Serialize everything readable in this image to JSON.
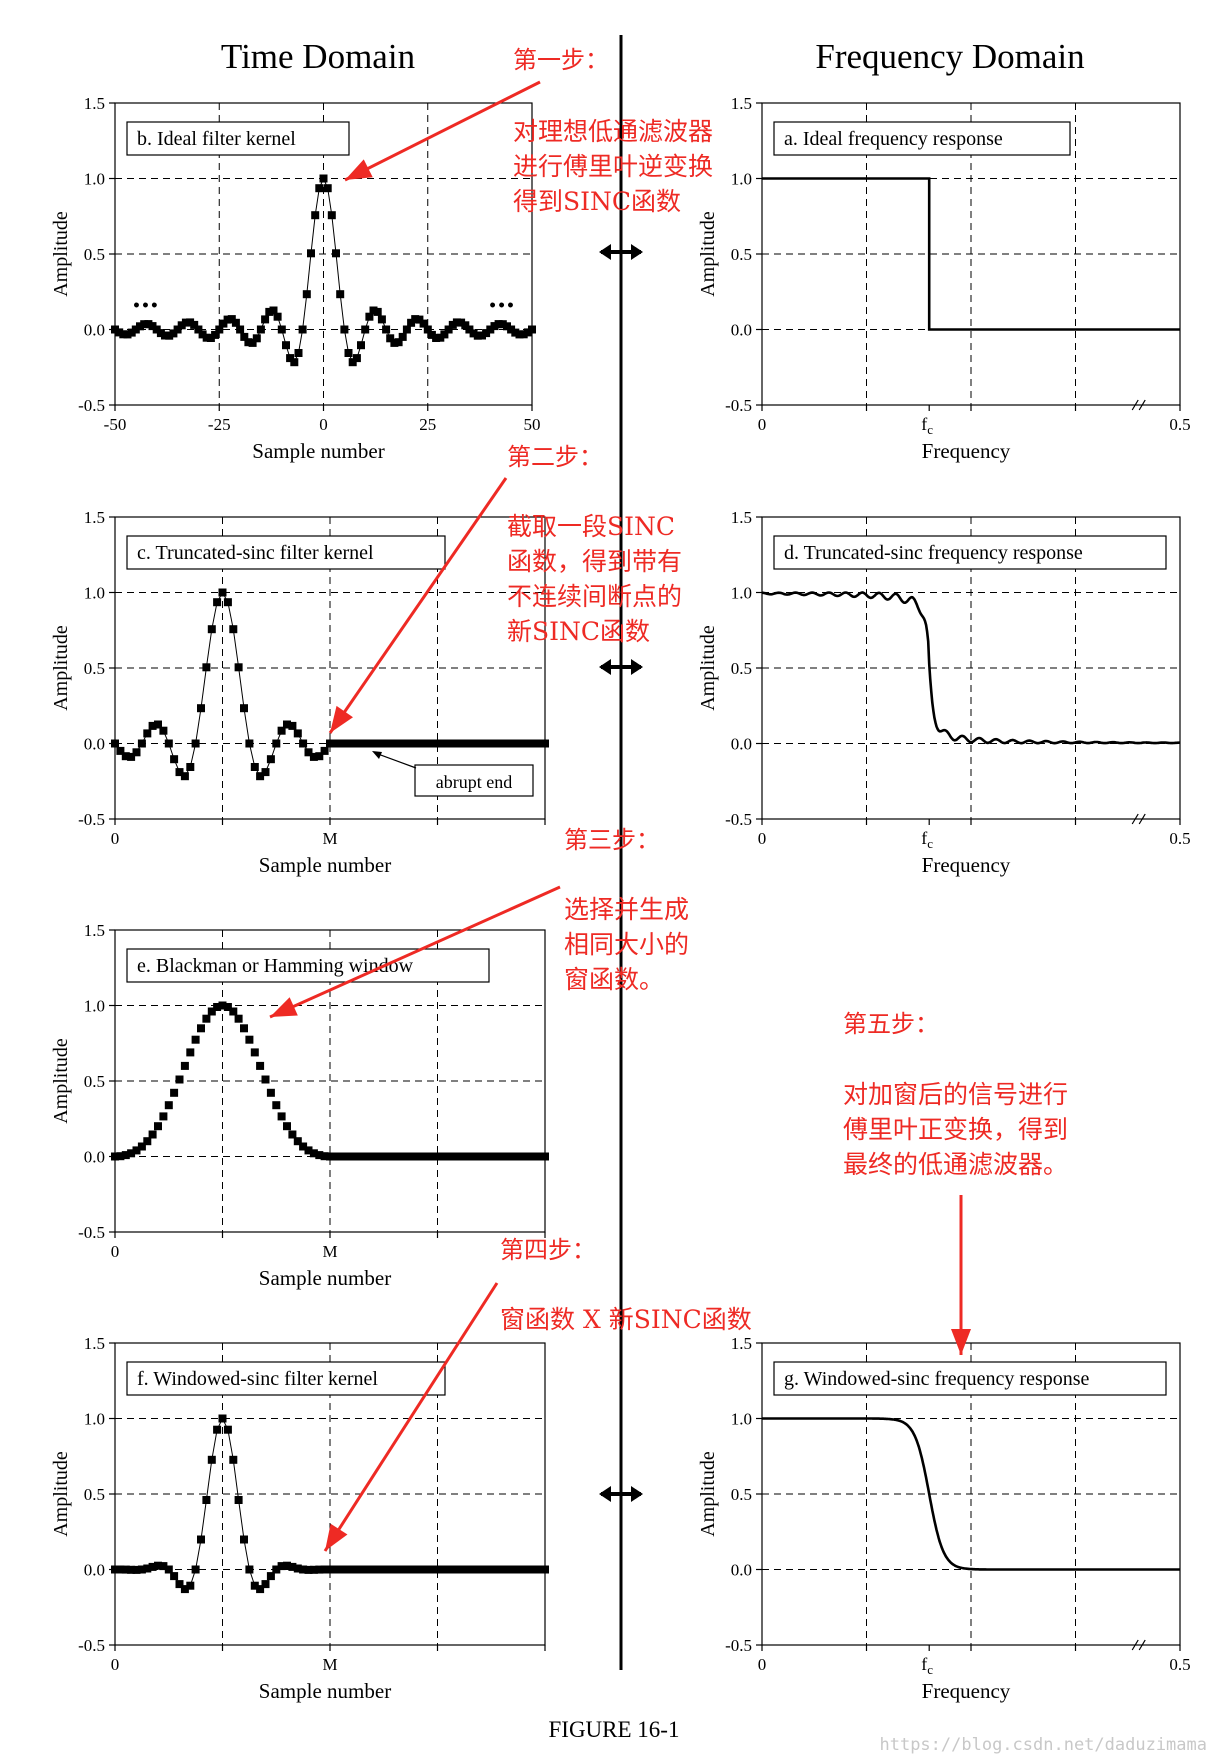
{
  "headers": {
    "time_domain": "Time Domain",
    "frequency_domain": "Frequency Domain"
  },
  "figure_caption": "FIGURE 16-1",
  "watermark": "https://blog.csdn.net/daduzimama",
  "colors": {
    "annotation": "#ee2a24",
    "ink": "#000000",
    "grid": "#000000"
  },
  "icons": {
    "transform_arrow": "double-headed-arrow-icon"
  },
  "chart_data": [
    {
      "id": "b",
      "type": "scatter",
      "domain": "time",
      "title": "b. Ideal filter kernel",
      "xlabel": "Sample number",
      "ylabel": "Amplitude",
      "xlim": [
        -50,
        50
      ],
      "ylim": [
        -0.5,
        1.5
      ],
      "xticks": [
        -50,
        -25,
        0,
        25,
        50
      ],
      "xtick_labels": [
        "-50",
        "-25",
        "0",
        "25",
        "50"
      ],
      "yticks": [
        -0.5,
        0.0,
        0.5,
        1.0,
        1.5
      ],
      "ytick_labels": [
        "-0.5",
        "0.0",
        "0.5",
        "1.0",
        "1.5"
      ],
      "grid": true,
      "markers": "square",
      "connected": true,
      "ellipsis_markers": "•••",
      "signal": "sinc",
      "cutoff_fc": 0.1,
      "x_range": [
        -50,
        50
      ],
      "step": 1
    },
    {
      "id": "a",
      "type": "line",
      "domain": "frequency",
      "title": "a. Ideal frequency response",
      "xlabel": "Frequency",
      "ylabel": "Amplitude",
      "xlim": [
        0,
        0.5
      ],
      "ylim": [
        -0.5,
        1.5
      ],
      "xtick_labels": [
        "0",
        "fc",
        "0.5"
      ],
      "yticks": [
        -0.5,
        0.0,
        0.5,
        1.0,
        1.5
      ],
      "ytick_labels": [
        "-0.5",
        "0.0",
        "0.5",
        "1.0",
        "1.5"
      ],
      "grid": true,
      "axis_break": true,
      "x": [
        0,
        0.2,
        0.2,
        0.5
      ],
      "y": [
        1.0,
        1.0,
        0.0,
        0.0
      ]
    },
    {
      "id": "c",
      "type": "scatter",
      "domain": "time",
      "title": "c. Truncated-sinc filter kernel",
      "xlabel": "Sample number",
      "ylabel": "Amplitude",
      "xtick_labels": [
        "0",
        "M"
      ],
      "yticks": [
        -0.5,
        0.0,
        0.5,
        1.0,
        1.5
      ],
      "ytick_labels": [
        "-0.5",
        "0.0",
        "0.5",
        "1.0",
        "1.5"
      ],
      "ylim": [
        -0.5,
        1.5
      ],
      "grid": true,
      "markers": "square",
      "connected": true,
      "signal": "truncated-sinc",
      "cutoff_fc": 0.1,
      "M": 40,
      "annotation": "abrupt end"
    },
    {
      "id": "d",
      "type": "line",
      "domain": "frequency",
      "title": "d. Truncated-sinc frequency response",
      "xlabel": "Frequency",
      "ylabel": "Amplitude",
      "xlim": [
        0,
        0.5
      ],
      "ylim": [
        -0.5,
        1.5
      ],
      "xtick_labels": [
        "0",
        "fc",
        "0.5"
      ],
      "yticks": [
        -0.5,
        0.0,
        0.5,
        1.0,
        1.5
      ],
      "ytick_labels": [
        "-0.5",
        "0.0",
        "0.5",
        "1.0",
        "1.5"
      ],
      "grid": true,
      "axis_break": true,
      "signal": "ripple-lowpass",
      "cutoff_fc": 0.2,
      "overshoot": 1.1
    },
    {
      "id": "e",
      "type": "scatter",
      "domain": "time",
      "title": "e. Blackman or Hamming window",
      "xlabel": "Sample number",
      "ylabel": "Amplitude",
      "xtick_labels": [
        "0",
        "M"
      ],
      "yticks": [
        -0.5,
        0.0,
        0.5,
        1.0,
        1.5
      ],
      "ytick_labels": [
        "-0.5",
        "0.0",
        "0.5",
        "1.0",
        "1.5"
      ],
      "ylim": [
        -0.5,
        1.5
      ],
      "grid": true,
      "markers": "square",
      "signal": "blackman-window",
      "M": 40
    },
    {
      "id": "f",
      "type": "scatter",
      "domain": "time",
      "title": "f. Windowed-sinc filter kernel",
      "xlabel": "Sample number",
      "ylabel": "Amplitude",
      "xtick_labels": [
        "0",
        "M"
      ],
      "yticks": [
        -0.5,
        0.0,
        0.5,
        1.0,
        1.5
      ],
      "ytick_labels": [
        "-0.5",
        "0.0",
        "0.5",
        "1.0",
        "1.5"
      ],
      "ylim": [
        -0.5,
        1.5
      ],
      "grid": true,
      "markers": "square",
      "connected": true,
      "signal": "windowed-sinc",
      "cutoff_fc": 0.1,
      "M": 40
    },
    {
      "id": "g",
      "type": "line",
      "domain": "frequency",
      "title": "g. Windowed-sinc frequency response",
      "xlabel": "Frequency",
      "ylabel": "Amplitude",
      "xlim": [
        0,
        0.5
      ],
      "ylim": [
        -0.5,
        1.5
      ],
      "xtick_labels": [
        "0",
        "fc",
        "0.5"
      ],
      "yticks": [
        -0.5,
        0.0,
        0.5,
        1.0,
        1.5
      ],
      "ytick_labels": [
        "-0.5",
        "0.0",
        "0.5",
        "1.0",
        "1.5"
      ],
      "grid": true,
      "axis_break": true,
      "signal": "smooth-lowpass",
      "cutoff_fc": 0.2
    }
  ],
  "annotations": {
    "step1": {
      "heading": "第一步：",
      "lines": [
        "对理想低通滤波器",
        "进行傅里叶逆变换",
        "得到SINC函数"
      ]
    },
    "step2": {
      "heading": "第二步：",
      "lines": [
        "截取一段SINC",
        "函数，得到带有",
        "不连续间断点的",
        "新SINC函数"
      ]
    },
    "step3": {
      "heading": "第三步：",
      "lines": [
        "选择并生成",
        "相同大小的",
        "窗函数。"
      ]
    },
    "step4": {
      "heading": "第四步：",
      "lines": [
        "窗函数 X 新SINC函数"
      ]
    },
    "step5": {
      "heading": "第五步：",
      "lines": [
        "对加窗后的信号进行",
        "傅里叶正变换，得到",
        "最终的低通滤波器。"
      ]
    }
  }
}
